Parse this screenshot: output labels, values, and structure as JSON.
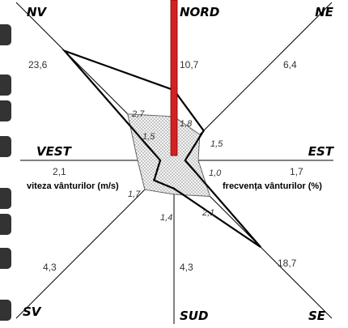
{
  "chart_data": {
    "type": "radar",
    "directions": [
      {
        "key": "N",
        "label": "NORD",
        "speed": "10,7",
        "frequency": "1,8"
      },
      {
        "key": "NE",
        "label": "NE",
        "speed": "6,4",
        "frequency": "1,5"
      },
      {
        "key": "E",
        "label": "EST",
        "speed": "1,7",
        "frequency": "1,0"
      },
      {
        "key": "SE",
        "label": "SE",
        "speed": "18,7",
        "frequency": "2,1"
      },
      {
        "key": "S",
        "label": "SUD",
        "speed": "4,3",
        "frequency": "1,4"
      },
      {
        "key": "SV",
        "label": "SV",
        "speed": "4,3",
        "frequency": "1,7"
      },
      {
        "key": "V",
        "label": "VEST",
        "speed": "2,1",
        "frequency": "1,5"
      },
      {
        "key": "NV",
        "label": "NV",
        "speed": "23,6",
        "frequency": "2,7"
      }
    ],
    "series": [
      {
        "name": "viteza vânturilor (m/s)",
        "values": [
          10.7,
          6.4,
          1.7,
          18.7,
          4.3,
          4.3,
          2.1,
          23.6
        ]
      },
      {
        "name": "frecvența vânturilor (%)",
        "values": [
          1.8,
          1.5,
          1.0,
          2.1,
          1.4,
          1.7,
          1.5,
          2.7
        ]
      }
    ],
    "highlight": {
      "direction": "N",
      "color": "#d62020"
    },
    "colors": {
      "speed_line": "#000000",
      "frequency_fill": "#f2f2f2",
      "frequency_dots": "#555555",
      "axes": "#000000"
    }
  }
}
